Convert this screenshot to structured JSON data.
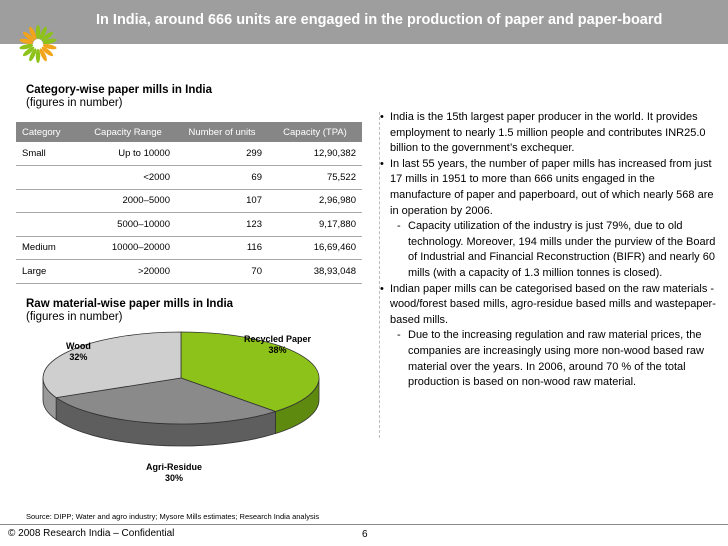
{
  "header": {
    "title": "In India, around 666 units are engaged in the production of paper and paper-board"
  },
  "table_section": {
    "title": "Category-wise paper mills in India",
    "subtitle": "(figures in number)",
    "columns": [
      "Category",
      "Capacity Range",
      "Number of units",
      "Capacity (TPA)"
    ],
    "rows": [
      [
        "Small",
        "Up to 10000",
        "299",
        "12,90,382"
      ],
      [
        "",
        "<2000",
        "69",
        "75,522"
      ],
      [
        "",
        "2000–5000",
        "107",
        "2,96,980"
      ],
      [
        "",
        "5000–10000",
        "123",
        "9,17,880"
      ],
      [
        "Medium",
        "10000–20000",
        "116",
        "16,69,460"
      ],
      [
        "Large",
        ">20000",
        "70",
        "38,93,048"
      ]
    ]
  },
  "pie_section": {
    "title": "Raw material-wise paper mills in India",
    "subtitle": "(figures in number)",
    "labels": {
      "wood_name": "Wood",
      "wood_pct": "32%",
      "recycled_name": "Recycled Paper",
      "recycled_pct": "38%",
      "agri_name": "Agri-Residue",
      "agri_pct": "30%"
    },
    "colors": {
      "wood": "#cfcfcf",
      "recycled": "#8cc21a",
      "agri": "#8a8a8a"
    }
  },
  "chart_data": {
    "type": "pie",
    "title": "Raw material-wise paper mills in India",
    "subtitle": "(figures in number)",
    "categories": [
      "Recycled Paper",
      "Agri-Residue",
      "Wood"
    ],
    "values": [
      38,
      30,
      32
    ],
    "unit": "%"
  },
  "bullets": [
    {
      "level": 1,
      "text": "India is the 15th largest paper producer in the world. It provides employment to nearly 1.5 million people and contributes INR25.0 billion to the government’s exchequer."
    },
    {
      "level": 1,
      "text": "In last 55 years, the number of paper mills has increased from just 17 mills in 1951 to more than 666 units engaged in the manufacture of paper and paperboard, out of which nearly 568 are in operation by 2006."
    },
    {
      "level": 2,
      "text": "Capacity utilization of the industry is just 79%, due to old technology. Moreover, 194 mills under the purview of the Board of Industrial and Financial Reconstruction (BIFR) and nearly 60 mills (with a capacity of 1.3 million tonnes is closed)."
    },
    {
      "level": 1,
      "text": "Indian paper mills can be categorised based on the raw materials -  wood/forest based mills, agro-residue based mills and wastepaper-based mills."
    },
    {
      "level": 2,
      "text": "Due to the increasing regulation and raw material prices, the companies are increasingly using more non-wood based raw material over the years. In 2006, around 70 % of the total production is based on non-wood raw material."
    }
  ],
  "source": "Source: DIPP; Water and agro industry; Mysore Mills estimates; Research India analysis",
  "footer": {
    "copyright": "© 2008 Research India – Confidential",
    "page_number": "6"
  },
  "logo": {
    "petal_colors": [
      "#8cc21a",
      "#f2a51a"
    ]
  }
}
